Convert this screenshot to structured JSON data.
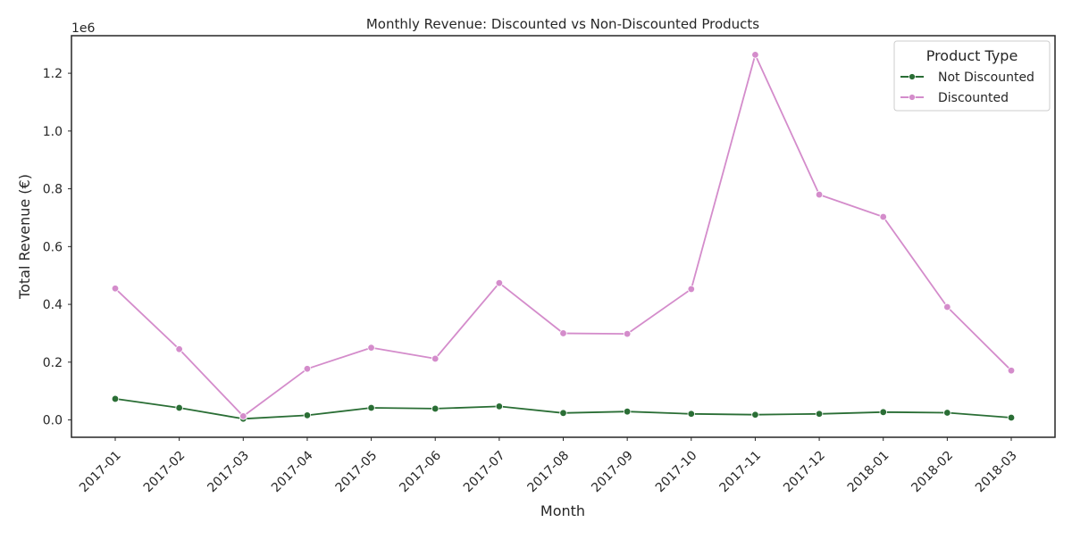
{
  "chart_data": {
    "type": "line",
    "title": "Monthly Revenue: Discounted vs Non-Discounted Products",
    "xlabel": "Month",
    "ylabel": "Total Revenue (€)",
    "y_offset_label": "1e6",
    "categories": [
      "2017-01",
      "2017-02",
      "2017-03",
      "2017-04",
      "2017-05",
      "2017-06",
      "2017-07",
      "2017-08",
      "2017-09",
      "2017-10",
      "2017-11",
      "2017-12",
      "2018-01",
      "2018-02",
      "2018-03"
    ],
    "ylim": [
      -0.06,
      1.33
    ],
    "yticks": [
      0.0,
      0.2,
      0.4,
      0.6,
      0.8,
      1.0,
      1.2
    ],
    "ytick_labels": [
      "0.0",
      "0.2",
      "0.4",
      "0.6",
      "0.8",
      "1.0",
      "1.2"
    ],
    "grid": false,
    "legend": {
      "title": "Product Type",
      "placement": "top-right"
    },
    "series": [
      {
        "name": "Not Discounted",
        "color": "#2a6e35",
        "values": [
          0.073,
          0.042,
          0.004,
          0.016,
          0.042,
          0.039,
          0.047,
          0.024,
          0.029,
          0.021,
          0.018,
          0.021,
          0.027,
          0.025,
          0.008
        ]
      },
      {
        "name": "Discounted",
        "color": "#d48ccb",
        "values": [
          0.455,
          0.245,
          0.013,
          0.177,
          0.25,
          0.212,
          0.474,
          0.3,
          0.298,
          0.453,
          1.264,
          0.78,
          0.703,
          0.391,
          0.171
        ]
      }
    ]
  }
}
